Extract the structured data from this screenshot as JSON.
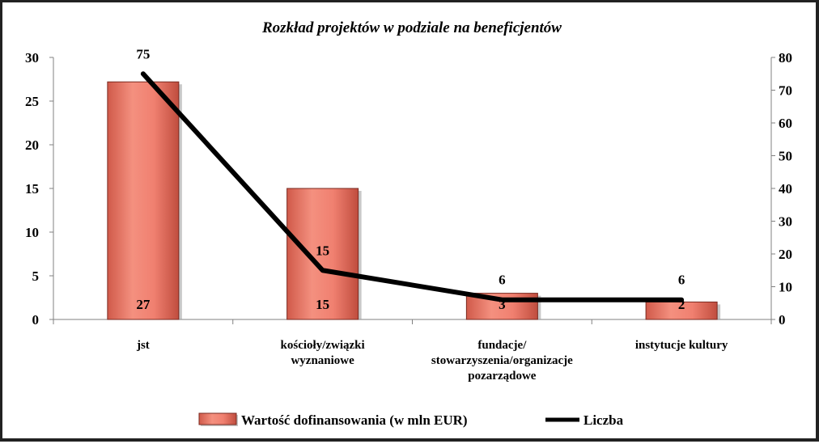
{
  "chart_data": {
    "type": "bar",
    "title": "Rozkład projektów w podziale na beneficjentów",
    "categories": [
      [
        "jst"
      ],
      [
        "kościoły/związki",
        "wyznaniowe"
      ],
      [
        "fundacje/",
        "stowarzyszenia/organizacje",
        "pozarządowe"
      ],
      [
        "instytucje kultury"
      ]
    ],
    "series": [
      {
        "name": "Wartość dofinansowania (w mln EUR)",
        "type": "bar",
        "axis": "left",
        "values": [
          27.2,
          15.0,
          3.0,
          2.0
        ],
        "labels": [
          "27",
          "15",
          "3",
          "2"
        ],
        "color": "#f08070"
      },
      {
        "name": "Liczba",
        "type": "line",
        "axis": "right",
        "values": [
          75,
          15,
          6,
          6
        ],
        "labels": [
          "75",
          "15",
          "6",
          "6"
        ],
        "color": "#000000"
      }
    ],
    "y_left": {
      "min": 0,
      "max": 30,
      "step": 5
    },
    "y_right": {
      "min": 0,
      "max": 80,
      "step": 10
    },
    "grid": false,
    "legend": "bottom"
  }
}
